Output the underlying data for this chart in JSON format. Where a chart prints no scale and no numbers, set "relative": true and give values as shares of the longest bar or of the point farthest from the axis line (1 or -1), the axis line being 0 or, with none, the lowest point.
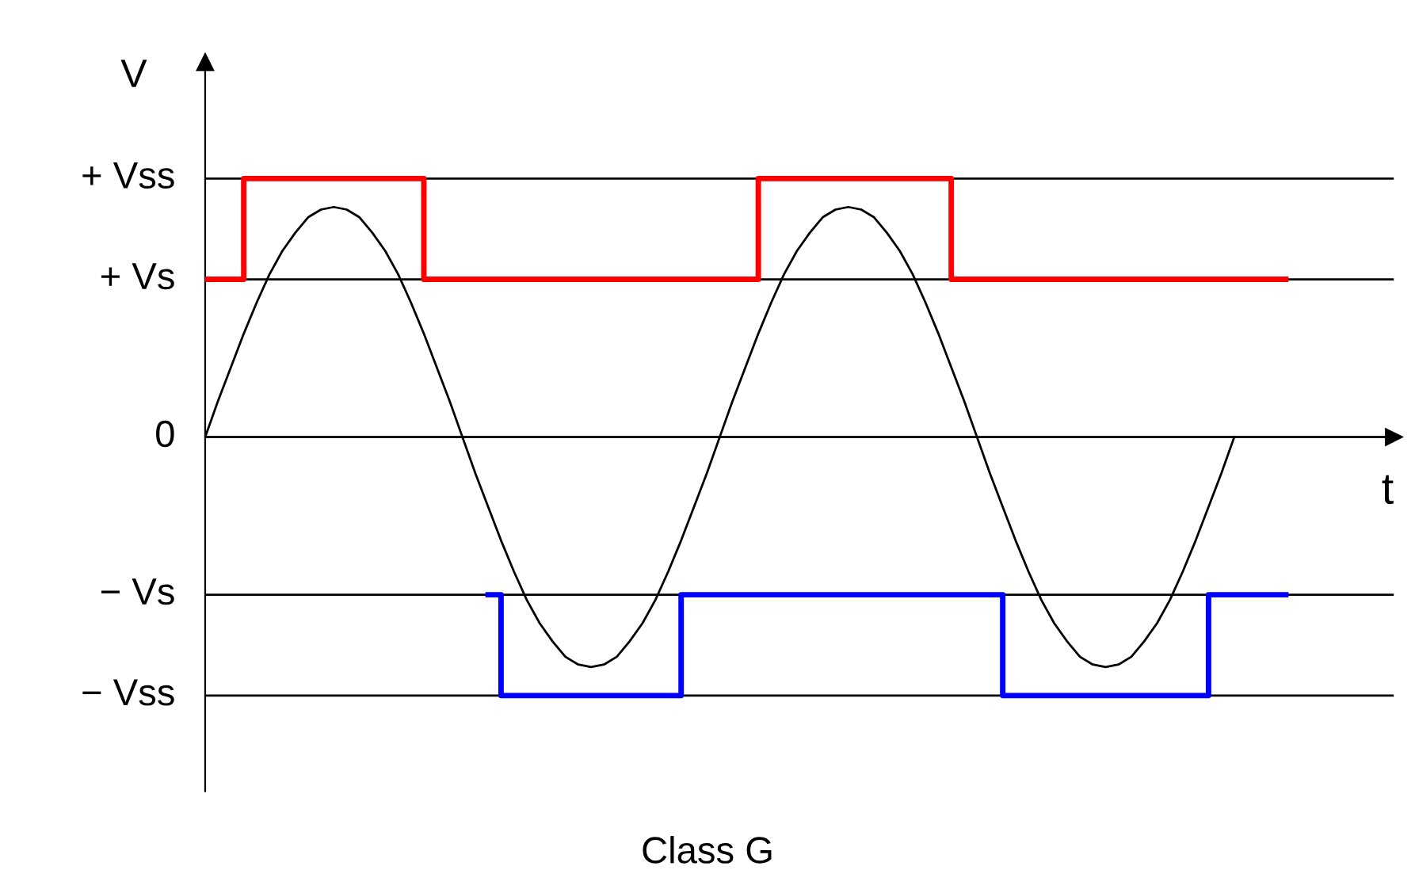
{
  "chart_data": {
    "type": "line",
    "title": "Class G",
    "xlabel": "t",
    "ylabel": "V",
    "relative": true,
    "categories": [
      null,
      null,
      null,
      null,
      null,
      null,
      null,
      null,
      null,
      null,
      null,
      null,
      null,
      null,
      null,
      null,
      null,
      null,
      null,
      null,
      null,
      null,
      null,
      null,
      null,
      null,
      null,
      null,
      null,
      null,
      null,
      null,
      null,
      null,
      null,
      null,
      null,
      null,
      null,
      null,
      null,
      null,
      null,
      null,
      null,
      null,
      null,
      null,
      null,
      null,
      null,
      null,
      null,
      null,
      null,
      null,
      null,
      null,
      null,
      null,
      null,
      null,
      null,
      null,
      null,
      null,
      null,
      null,
      null,
      null,
      null,
      null,
      null,
      null,
      null,
      null,
      null,
      null,
      null,
      null,
      null,
      null,
      null,
      null,
      null
    ],
    "series": [
      {
        "color": "#000000",
        "values": [
          0,
          0.14,
          0.27,
          0.4,
          0.52,
          0.63,
          0.72,
          0.79,
          0.85,
          0.88,
          0.89,
          0.88,
          0.85,
          0.79,
          0.72,
          0.63,
          0.52,
          0.4,
          0.27,
          0.14,
          0,
          -0.14,
          -0.27,
          -0.4,
          -0.52,
          -0.63,
          -0.72,
          -0.79,
          -0.85,
          -0.88,
          -0.89,
          -0.88,
          -0.85,
          -0.79,
          -0.72,
          -0.63,
          -0.52,
          -0.4,
          -0.27,
          -0.14,
          0,
          0.14,
          0.27,
          0.4,
          0.52,
          0.63,
          0.72,
          0.79,
          0.85,
          0.88,
          0.89,
          0.88,
          0.85,
          0.79,
          0.72,
          0.63,
          0.52,
          0.4,
          0.27,
          0.14,
          0,
          -0.14,
          -0.27,
          -0.4,
          -0.52,
          -0.63,
          -0.72,
          -0.79,
          -0.85,
          -0.88,
          -0.89,
          -0.88,
          -0.85,
          -0.79,
          -0.72,
          -0.63,
          -0.52,
          -0.4,
          -0.27,
          -0.14,
          0,
          null,
          null,
          null,
          null
        ]
      },
      {
        "type": "step",
        "color": "#ff0000",
        "values": [
          0.61,
          0.61,
          0.61,
          1,
          1,
          1,
          1,
          1,
          1,
          1,
          1,
          1,
          1,
          1,
          1,
          1,
          1,
          0.61,
          0.61,
          0.61,
          0.61,
          0.61,
          0.61,
          0.61,
          0.61,
          0.61,
          0.61,
          0.61,
          0.61,
          0.61,
          0.61,
          0.61,
          0.61,
          0.61,
          0.61,
          0.61,
          0.61,
          0.61,
          0.61,
          0.61,
          0.61,
          0.61,
          0.61,
          1,
          1,
          1,
          1,
          1,
          1,
          1,
          1,
          1,
          1,
          1,
          1,
          1,
          1,
          1,
          0.61,
          0.61,
          0.61,
          0.61,
          0.61,
          0.61,
          0.61,
          0.61,
          0.61,
          0.61,
          0.61,
          0.61,
          0.61,
          0.61,
          0.61,
          0.61,
          0.61,
          0.61,
          0.61,
          0.61,
          0.61,
          0.61,
          0.61,
          0.61,
          0.61,
          0.61,
          0.61
        ]
      },
      {
        "type": "step",
        "color": "#0000ff",
        "values": [
          null,
          null,
          null,
          null,
          null,
          null,
          null,
          null,
          null,
          null,
          null,
          null,
          null,
          null,
          null,
          null,
          null,
          null,
          null,
          null,
          null,
          null,
          -0.61,
          -1,
          -1,
          -1,
          -1,
          -1,
          -1,
          -1,
          -1,
          -1,
          -1,
          -1,
          -1,
          -1,
          -1,
          -0.61,
          -0.61,
          -0.61,
          -0.61,
          -0.61,
          -0.61,
          -0.61,
          -0.61,
          -0.61,
          -0.61,
          -0.61,
          -0.61,
          -0.61,
          -0.61,
          -0.61,
          -0.61,
          -0.61,
          -0.61,
          -0.61,
          -0.61,
          -0.61,
          -0.61,
          -0.61,
          -0.61,
          -0.61,
          -1,
          -1,
          -1,
          -1,
          -1,
          -1,
          -1,
          -1,
          -1,
          -1,
          -1,
          -1,
          -1,
          -1,
          -1,
          -1,
          -0.61,
          -0.61,
          -0.61,
          -0.61,
          -0.61,
          -0.61,
          -0.61
        ]
      }
    ],
    "ref_lines": [
      {
        "axis": "y",
        "value": 1,
        "label": "+ Vss",
        "color": "#000000"
      },
      {
        "axis": "y",
        "value": 0.61,
        "label": "+ Vs",
        "color": "#000000"
      },
      {
        "axis": "y",
        "value": 0,
        "label": "0",
        "color": "#000000"
      },
      {
        "axis": "y",
        "value": -0.61,
        "label": "− Vs",
        "color": "#000000"
      },
      {
        "axis": "y",
        "value": -1,
        "label": "− Vss",
        "color": "#000000"
      }
    ],
    "grid": false,
    "legend": false
  }
}
